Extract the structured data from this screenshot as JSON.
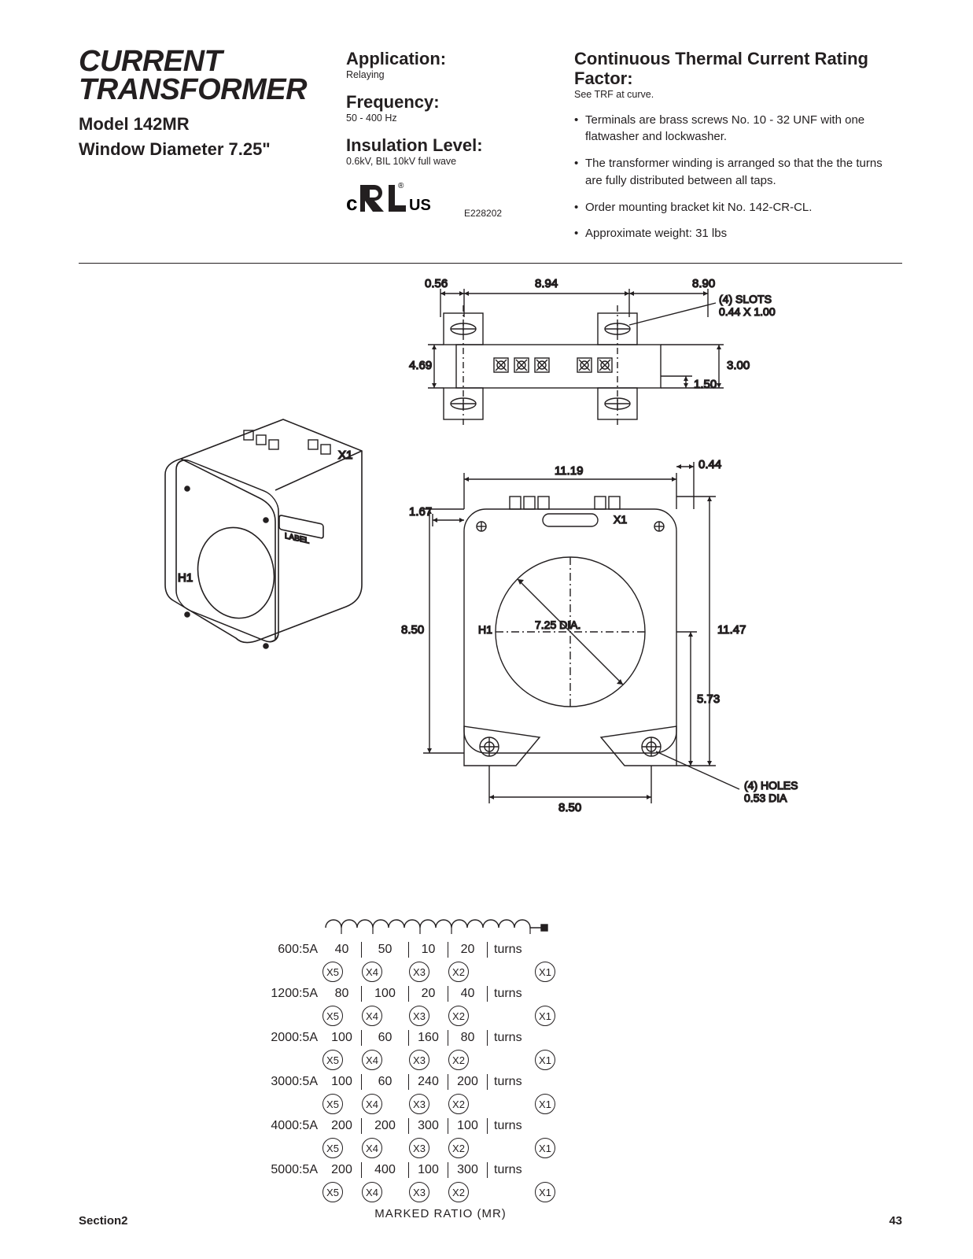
{
  "title": {
    "line1": "CURRENT",
    "line2": "TRANSFORMER"
  },
  "model": {
    "line1": "Model 142MR",
    "line2": "Window Diameter 7.25\""
  },
  "specs": {
    "application": {
      "head": "Application:",
      "sub": "Relaying"
    },
    "frequency": {
      "head": "Frequency:",
      "sub": "50 - 400 Hz"
    },
    "insulation": {
      "head": "Insulation Level:",
      "sub": "0.6kV, BIL 10kV full wave"
    }
  },
  "cert": {
    "file": "E228202"
  },
  "rating": {
    "head": "Continuous Thermal Current Rating Factor:",
    "sub": "See TRF at curve."
  },
  "bullets": [
    "Terminals are brass screws No. 10 - 32 UNF with one flatwasher and lockwasher.",
    "The transformer winding is arranged so that the the turns are fully distributed between all taps.",
    "Order mounting bracket kit No. 142-CR-CL.",
    "Approximate weight:  31 lbs"
  ],
  "top_view": {
    "dims": {
      "d056": "0.56",
      "d894": "8.94",
      "d890": "8.90",
      "d469": "4.69",
      "d300": "3.00",
      "d150": "1.50"
    },
    "slots": "(4)  SLOTS",
    "slots_dim": "0.44  X  1.00"
  },
  "front_view": {
    "dims": {
      "d1119": "11.19",
      "d044": "0.44",
      "d167": "1.67",
      "d850a": "8.50",
      "d725": "7.25  DIA.",
      "d1147": "11.47",
      "d573": "5.73",
      "d850b": "8.50"
    },
    "h1": "H1",
    "x1": "X1",
    "holes": "(4)  HOLES",
    "holes_dim": "0.53  DIA"
  },
  "iso": {
    "h1": "H1",
    "x1": "X1",
    "label": "LABEL"
  },
  "tap": {
    "rows": [
      {
        "ratio": "600:5A",
        "turns": [
          "40",
          "50",
          "10",
          "20"
        ]
      },
      {
        "ratio": "1200:5A",
        "turns": [
          "80",
          "100",
          "20",
          "40"
        ]
      },
      {
        "ratio": "2000:5A",
        "turns": [
          "100",
          "60",
          "160",
          "80"
        ]
      },
      {
        "ratio": "3000:5A",
        "turns": [
          "100",
          "60",
          "240",
          "200"
        ]
      },
      {
        "ratio": "4000:5A",
        "turns": [
          "200",
          "200",
          "300",
          "100"
        ]
      },
      {
        "ratio": "5000:5A",
        "turns": [
          "200",
          "400",
          "100",
          "300"
        ]
      }
    ],
    "xlabels": [
      "X5",
      "X4",
      "X3",
      "X2",
      "X1"
    ],
    "turns_word": "turns",
    "footer": "MARKED  RATIO  (MR)"
  },
  "footer": {
    "section": "Section2",
    "page": "43"
  }
}
